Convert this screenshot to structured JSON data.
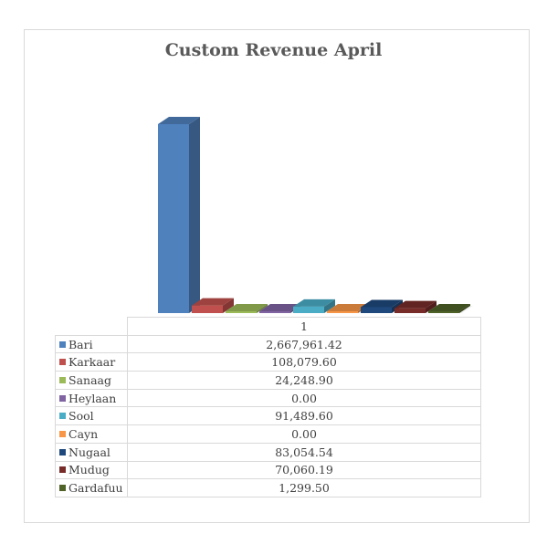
{
  "chart_data": {
    "type": "bar",
    "title": "Custom Revenue April",
    "categories": [
      "1"
    ],
    "series": [
      {
        "name": "Bari",
        "value": 2667961.42,
        "label": "2,667,961.42",
        "color": "#4f81bd"
      },
      {
        "name": "Karkaar",
        "value": 108079.6,
        "label": "108,079.60",
        "color": "#c0504d"
      },
      {
        "name": "Sanaag",
        "value": 24248.9,
        "label": "24,248.90",
        "color": "#9bbb59"
      },
      {
        "name": "Heylaan",
        "value": 0.0,
        "label": "0.00",
        "color": "#8064a2"
      },
      {
        "name": "Sool",
        "value": 91489.6,
        "label": "91,489.60",
        "color": "#4bacc6"
      },
      {
        "name": "Cayn",
        "value": 0.0,
        "label": "0.00",
        "color": "#f79646"
      },
      {
        "name": "Nugaal",
        "value": 83054.54,
        "label": "83,054.54",
        "color": "#1f497d"
      },
      {
        "name": "Mudug",
        "value": 70060.19,
        "label": "70,060.19",
        "color": "#772c2a"
      },
      {
        "name": "Gardafuu",
        "value": 1299.5,
        "label": "1,299.50",
        "color": "#4f6228"
      }
    ],
    "legend": "data-table",
    "style": "3d-column",
    "grid": false
  }
}
